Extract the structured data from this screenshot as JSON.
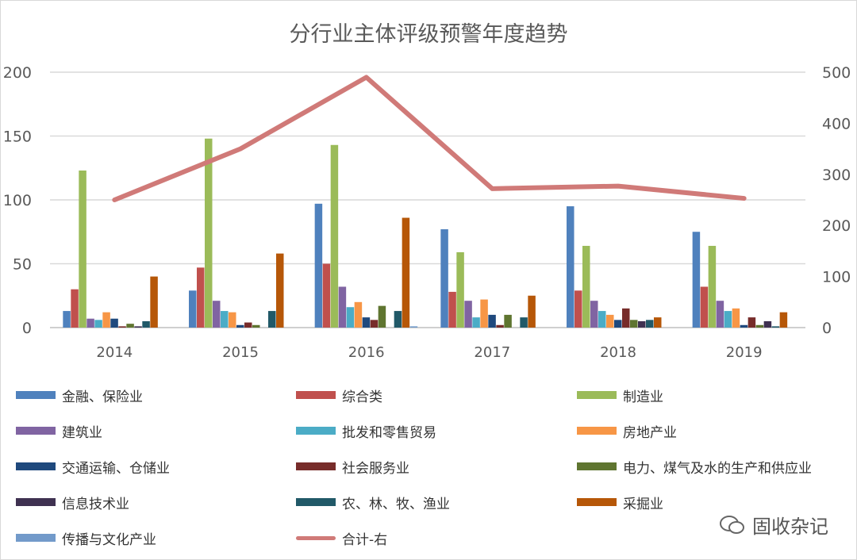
{
  "chart_data": {
    "type": "bar",
    "title": "分行业主体评级预警年度趋势",
    "categories": [
      "2014",
      "2015",
      "2016",
      "2017",
      "2018",
      "2019"
    ],
    "y_left": {
      "range": [
        0,
        200
      ],
      "ticks": [
        0,
        50,
        100,
        150,
        200
      ]
    },
    "y_right": {
      "range": [
        0,
        500
      ],
      "ticks": [
        0,
        100,
        200,
        300,
        400,
        500
      ]
    },
    "grid": true,
    "legend_position": "bottom",
    "series": [
      {
        "name": "金融、保险业",
        "color": "#4f81bd",
        "values": [
          13,
          29,
          97,
          77,
          95,
          75
        ]
      },
      {
        "name": "综合类",
        "color": "#c0504d",
        "values": [
          30,
          47,
          50,
          28,
          29,
          32
        ]
      },
      {
        "name": "制造业",
        "color": "#9bbb59",
        "values": [
          123,
          148,
          143,
          59,
          64,
          64
        ]
      },
      {
        "name": "建筑业",
        "color": "#8064a2",
        "values": [
          7,
          21,
          32,
          21,
          21,
          21
        ]
      },
      {
        "name": "批发和零售贸易",
        "color": "#4bacc6",
        "values": [
          6,
          13,
          16,
          8,
          13,
          13
        ]
      },
      {
        "name": "房地产业",
        "color": "#f79646",
        "values": [
          12,
          12,
          20,
          22,
          10,
          15
        ]
      },
      {
        "name": "交通运输、仓储业",
        "color": "#1f497d",
        "values": [
          7,
          2,
          8,
          10,
          6,
          2
        ]
      },
      {
        "name": "社会服务业",
        "color": "#772c2a",
        "values": [
          1,
          4,
          6,
          2,
          15,
          8
        ]
      },
      {
        "name": "电力、煤气及水的生产和供应业",
        "color": "#5f7530",
        "values": [
          3,
          2,
          17,
          10,
          6,
          2
        ]
      },
      {
        "name": "信息技术业",
        "color": "#3f3151",
        "values": [
          1,
          0,
          0,
          0,
          5,
          5
        ]
      },
      {
        "name": "农、林、牧、渔业",
        "color": "#215968",
        "values": [
          5,
          13,
          13,
          8,
          6,
          1
        ]
      },
      {
        "name": "采掘业",
        "color": "#b65708",
        "values": [
          40,
          58,
          86,
          25,
          8,
          12
        ]
      },
      {
        "name": "传播与文化产业",
        "color": "#729aca",
        "values": [
          0,
          0,
          1,
          0,
          0,
          0
        ]
      }
    ],
    "line_series": {
      "name": "合计-右",
      "color": "#d07a78",
      "axis": "right",
      "values": [
        250,
        350,
        490,
        272,
        277,
        253
      ]
    }
  },
  "watermark": "固收杂记"
}
